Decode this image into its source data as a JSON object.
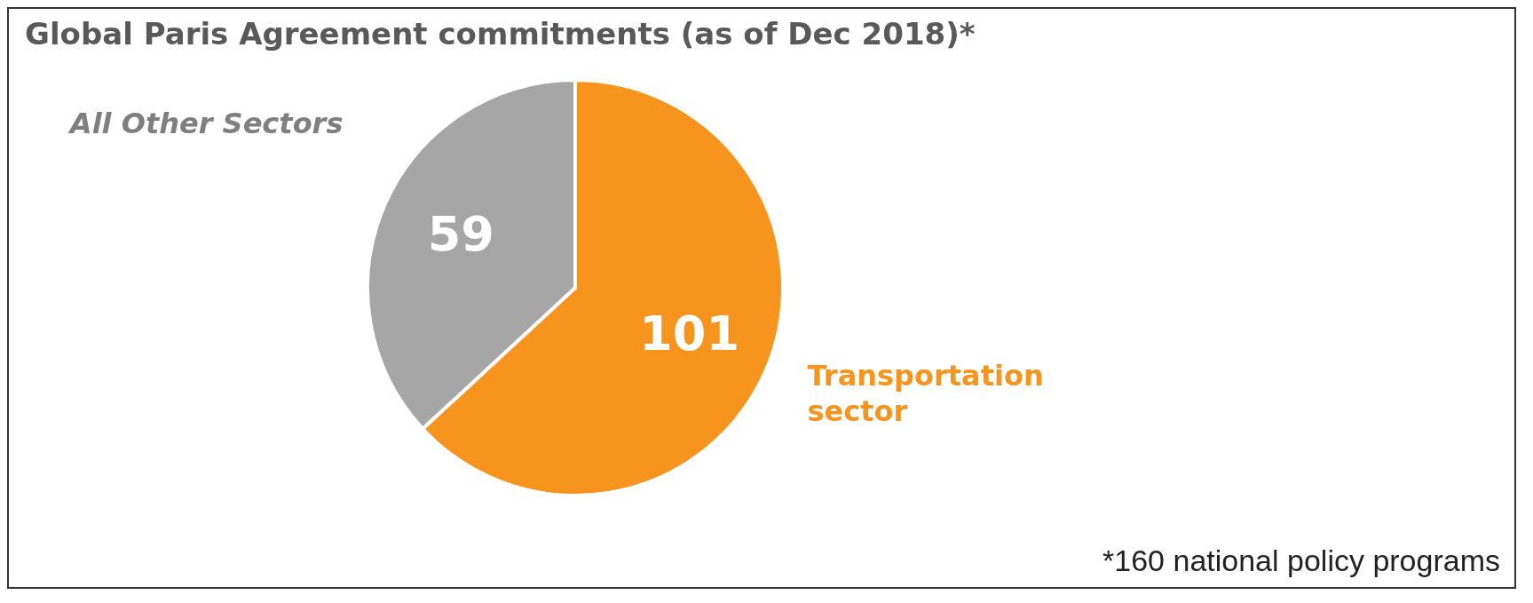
{
  "chart_data": {
    "type": "pie",
    "title": "Global Paris Agreement commitments (as of Dec 2018)*",
    "categories": [
      "Transportation sector",
      "All Other Sectors"
    ],
    "values": [
      101,
      59
    ],
    "colors": [
      "#f7941d",
      "#a6a6a6"
    ],
    "data_labels": true,
    "legend": false,
    "annotations": [
      "*160 national policy programs"
    ]
  }
}
